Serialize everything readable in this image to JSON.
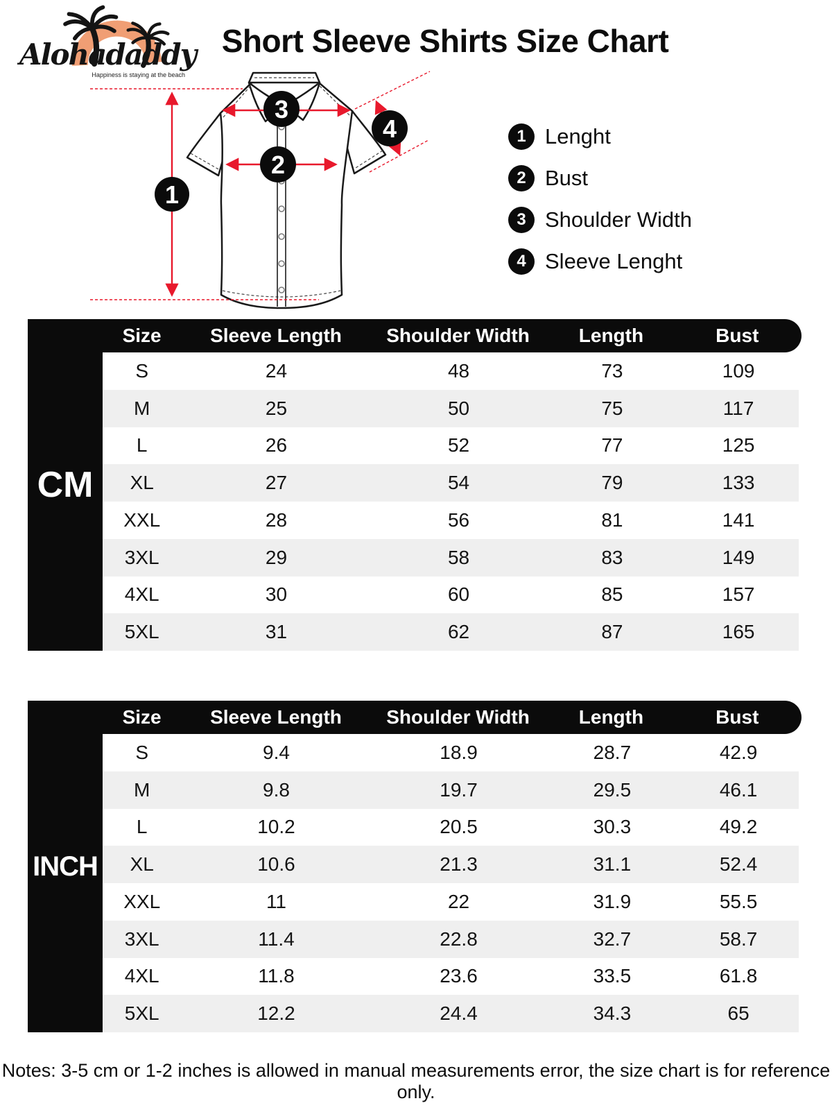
{
  "logo": {
    "brand": "Alohadaddy",
    "tagline": "Happiness is staying at the beach"
  },
  "title": "Short Sleeve Shirts Size Chart",
  "legend": [
    {
      "num": "1",
      "label": "Lenght"
    },
    {
      "num": "2",
      "label": "Bust"
    },
    {
      "num": "3",
      "label": "Shoulder Width"
    },
    {
      "num": "4",
      "label": "Sleeve Lenght"
    }
  ],
  "table_headers": [
    "Size",
    "Sleeve Length",
    "Shoulder Width",
    "Length",
    "Bust"
  ],
  "tables": [
    {
      "unit": "CM",
      "rows": [
        [
          "S",
          "24",
          "48",
          "73",
          "109"
        ],
        [
          "M",
          "25",
          "50",
          "75",
          "117"
        ],
        [
          "L",
          "26",
          "52",
          "77",
          "125"
        ],
        [
          "XL",
          "27",
          "54",
          "79",
          "133"
        ],
        [
          "XXL",
          "28",
          "56",
          "81",
          "141"
        ],
        [
          "3XL",
          "29",
          "58",
          "83",
          "149"
        ],
        [
          "4XL",
          "30",
          "60",
          "85",
          "157"
        ],
        [
          "5XL",
          "31",
          "62",
          "87",
          "165"
        ]
      ]
    },
    {
      "unit": "INCH",
      "rows": [
        [
          "S",
          "9.4",
          "18.9",
          "28.7",
          "42.9"
        ],
        [
          "M",
          "9.8",
          "19.7",
          "29.5",
          "46.1"
        ],
        [
          "L",
          "10.2",
          "20.5",
          "30.3",
          "49.2"
        ],
        [
          "XL",
          "10.6",
          "21.3",
          "31.1",
          "52.4"
        ],
        [
          "XXL",
          "11",
          "22",
          "31.9",
          "55.5"
        ],
        [
          "3XL",
          "11.4",
          "22.8",
          "32.7",
          "58.7"
        ],
        [
          "4XL",
          "11.8",
          "23.6",
          "33.5",
          "61.8"
        ],
        [
          "5XL",
          "12.2",
          "24.4",
          "34.3",
          "65"
        ]
      ]
    }
  ],
  "notes": "Notes: 3-5 cm or 1-2 inches is allowed in manual measurements error, the size chart is for reference only.",
  "colors": {
    "accent_red": "#e8192c",
    "row_alt": "#efefef",
    "table_black": "#0b0b0b",
    "logo_sun": "#f09e74"
  }
}
